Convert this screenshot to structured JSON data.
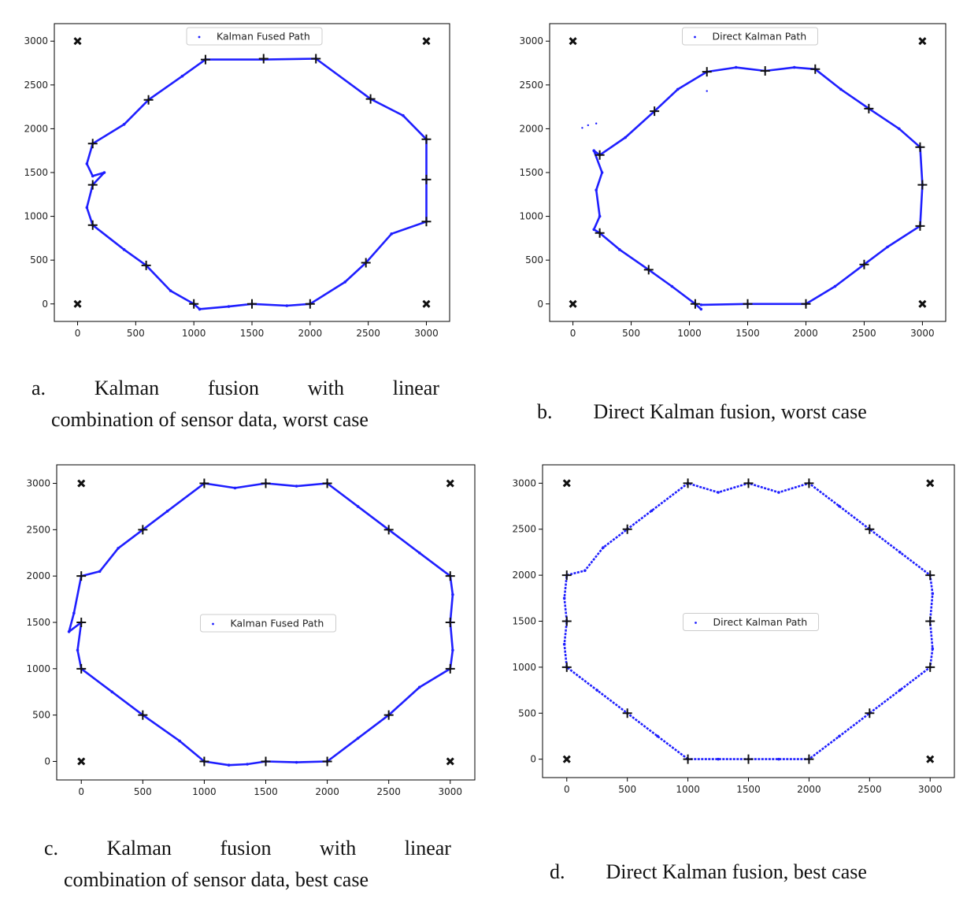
{
  "colors": {
    "path": "#1f1fff",
    "marker": "#111111",
    "axis": "#000000"
  },
  "chart_data": [
    {
      "type": "scatter",
      "panel_id": "a",
      "legend_label": "Kalman Fused Path",
      "legend_position": "top-center",
      "xticks": [
        0,
        500,
        1000,
        1500,
        2000,
        2500,
        3000
      ],
      "yticks": [
        0,
        500,
        1000,
        1500,
        2000,
        2500,
        3000
      ],
      "xlim": [
        -200,
        3200
      ],
      "ylim": [
        -200,
        3200
      ],
      "corner_markers": [
        [
          0,
          0
        ],
        [
          0,
          3000
        ],
        [
          3000,
          0
        ],
        [
          3000,
          3000
        ]
      ],
      "waypoints": [
        [
          1000,
          0
        ],
        [
          1500,
          0
        ],
        [
          2000,
          0
        ],
        [
          2480,
          470
        ],
        [
          3000,
          940
        ],
        [
          3000,
          1420
        ],
        [
          3000,
          1880
        ],
        [
          2520,
          2340
        ],
        [
          2050,
          2800
        ],
        [
          1600,
          2800
        ],
        [
          1100,
          2790
        ],
        [
          610,
          2330
        ],
        [
          130,
          1830
        ],
        [
          130,
          1360
        ],
        [
          130,
          900
        ],
        [
          590,
          440
        ]
      ],
      "path": [
        [
          1050,
          -60
        ],
        [
          1000,
          0
        ],
        [
          800,
          150
        ],
        [
          590,
          440
        ],
        [
          400,
          620
        ],
        [
          130,
          900
        ],
        [
          80,
          1100
        ],
        [
          130,
          1360
        ],
        [
          230,
          1500
        ],
        [
          130,
          1460
        ],
        [
          80,
          1600
        ],
        [
          130,
          1830
        ],
        [
          400,
          2050
        ],
        [
          610,
          2330
        ],
        [
          900,
          2600
        ],
        [
          1100,
          2790
        ],
        [
          1600,
          2790
        ],
        [
          2050,
          2800
        ],
        [
          2520,
          2340
        ],
        [
          2800,
          2150
        ],
        [
          3000,
          1880
        ],
        [
          3000,
          1420
        ],
        [
          3000,
          940
        ],
        [
          2700,
          800
        ],
        [
          2480,
          470
        ],
        [
          2300,
          250
        ],
        [
          2000,
          0
        ],
        [
          1800,
          -20
        ],
        [
          1500,
          0
        ],
        [
          1300,
          -30
        ],
        [
          1050,
          -60
        ]
      ]
    },
    {
      "type": "scatter",
      "panel_id": "b",
      "legend_label": "Direct Kalman Path",
      "legend_position": "top-center",
      "xticks": [
        0,
        500,
        1000,
        1500,
        2000,
        2500,
        3000
      ],
      "yticks": [
        0,
        500,
        1000,
        1500,
        2000,
        2500,
        3000
      ],
      "xlim": [
        -200,
        3200
      ],
      "ylim": [
        -200,
        3200
      ],
      "corner_markers": [
        [
          0,
          0
        ],
        [
          0,
          3000
        ],
        [
          3000,
          0
        ],
        [
          3000,
          3000
        ]
      ],
      "waypoints": [
        [
          1050,
          0
        ],
        [
          1500,
          0
        ],
        [
          2000,
          0
        ],
        [
          2500,
          450
        ],
        [
          2980,
          890
        ],
        [
          3000,
          1360
        ],
        [
          2980,
          1790
        ],
        [
          2540,
          2230
        ],
        [
          2080,
          2680
        ],
        [
          1650,
          2660
        ],
        [
          1150,
          2650
        ],
        [
          700,
          2200
        ],
        [
          230,
          1700
        ],
        [
          230,
          810
        ],
        [
          650,
          390
        ]
      ],
      "path": [
        [
          1100,
          -60
        ],
        [
          1050,
          0
        ],
        [
          850,
          200
        ],
        [
          650,
          390
        ],
        [
          400,
          620
        ],
        [
          230,
          810
        ],
        [
          180,
          850
        ],
        [
          230,
          1000
        ],
        [
          200,
          1300
        ],
        [
          250,
          1500
        ],
        [
          180,
          1750
        ],
        [
          230,
          1700
        ],
        [
          450,
          1900
        ],
        [
          700,
          2200
        ],
        [
          900,
          2450
        ],
        [
          1150,
          2650
        ],
        [
          1400,
          2700
        ],
        [
          1650,
          2660
        ],
        [
          1900,
          2700
        ],
        [
          2080,
          2680
        ],
        [
          2300,
          2450
        ],
        [
          2540,
          2230
        ],
        [
          2800,
          2000
        ],
        [
          2980,
          1790
        ],
        [
          3000,
          1360
        ],
        [
          2980,
          890
        ],
        [
          2700,
          650
        ],
        [
          2500,
          450
        ],
        [
          2250,
          200
        ],
        [
          2000,
          0
        ],
        [
          1500,
          0
        ],
        [
          1100,
          -10
        ]
      ],
      "stray_points": [
        [
          80,
          2010
        ],
        [
          130,
          2040
        ],
        [
          200,
          2060
        ],
        [
          1150,
          2430
        ]
      ]
    },
    {
      "type": "scatter",
      "panel_id": "c",
      "legend_label": "Kalman Fused Path",
      "legend_position": "center",
      "xticks": [
        0,
        500,
        1000,
        1500,
        2000,
        2500,
        3000
      ],
      "yticks": [
        0,
        500,
        1000,
        1500,
        2000,
        2500,
        3000
      ],
      "xlim": [
        -200,
        3200
      ],
      "ylim": [
        -200,
        3200
      ],
      "corner_markers": [
        [
          0,
          0
        ],
        [
          0,
          3000
        ],
        [
          3000,
          0
        ],
        [
          3000,
          3000
        ]
      ],
      "waypoints": [
        [
          1000,
          0
        ],
        [
          1500,
          0
        ],
        [
          2000,
          0
        ],
        [
          2500,
          500
        ],
        [
          3000,
          1000
        ],
        [
          3000,
          1500
        ],
        [
          3000,
          2000
        ],
        [
          2500,
          2500
        ],
        [
          2000,
          3000
        ],
        [
          1500,
          3000
        ],
        [
          1000,
          3000
        ],
        [
          500,
          2500
        ],
        [
          0,
          2000
        ],
        [
          0,
          1500
        ],
        [
          0,
          1000
        ],
        [
          500,
          500
        ]
      ],
      "path": [
        [
          1200,
          -40
        ],
        [
          1000,
          0
        ],
        [
          800,
          220
        ],
        [
          500,
          500
        ],
        [
          250,
          750
        ],
        [
          0,
          1000
        ],
        [
          -30,
          1200
        ],
        [
          0,
          1500
        ],
        [
          -100,
          1400
        ],
        [
          -60,
          1600
        ],
        [
          0,
          2000
        ],
        [
          150,
          2050
        ],
        [
          300,
          2300
        ],
        [
          500,
          2500
        ],
        [
          700,
          2700
        ],
        [
          1000,
          3000
        ],
        [
          1250,
          2950
        ],
        [
          1500,
          3000
        ],
        [
          1750,
          2970
        ],
        [
          2000,
          3000
        ],
        [
          2250,
          2750
        ],
        [
          2500,
          2500
        ],
        [
          2750,
          2250
        ],
        [
          3000,
          2000
        ],
        [
          3020,
          1800
        ],
        [
          3000,
          1500
        ],
        [
          3020,
          1200
        ],
        [
          3000,
          1000
        ],
        [
          2750,
          800
        ],
        [
          2500,
          500
        ],
        [
          2250,
          250
        ],
        [
          2000,
          0
        ],
        [
          1750,
          -10
        ],
        [
          1500,
          0
        ],
        [
          1350,
          -30
        ],
        [
          1200,
          -40
        ]
      ]
    },
    {
      "type": "scatter",
      "panel_id": "d",
      "legend_label": "Direct Kalman Path",
      "legend_position": "center",
      "xticks": [
        0,
        500,
        1000,
        1500,
        2000,
        2500,
        3000
      ],
      "yticks": [
        0,
        500,
        1000,
        1500,
        2000,
        2500,
        3000
      ],
      "xlim": [
        -200,
        3200
      ],
      "ylim": [
        -200,
        3200
      ],
      "corner_markers": [
        [
          0,
          0
        ],
        [
          0,
          3000
        ],
        [
          3000,
          0
        ],
        [
          3000,
          3000
        ]
      ],
      "waypoints": [
        [
          1000,
          0
        ],
        [
          1500,
          0
        ],
        [
          2000,
          0
        ],
        [
          2500,
          500
        ],
        [
          3000,
          1000
        ],
        [
          3000,
          1500
        ],
        [
          3000,
          2000
        ],
        [
          2500,
          2500
        ],
        [
          2000,
          3000
        ],
        [
          1500,
          3000
        ],
        [
          1000,
          3000
        ],
        [
          500,
          2500
        ],
        [
          0,
          2000
        ],
        [
          0,
          1500
        ],
        [
          0,
          1000
        ],
        [
          500,
          500
        ]
      ],
      "path": [
        [
          1000,
          0
        ],
        [
          750,
          250
        ],
        [
          500,
          500
        ],
        [
          250,
          750
        ],
        [
          0,
          1000
        ],
        [
          -20,
          1250
        ],
        [
          0,
          1500
        ],
        [
          -20,
          1750
        ],
        [
          0,
          2000
        ],
        [
          150,
          2050
        ],
        [
          300,
          2300
        ],
        [
          500,
          2500
        ],
        [
          700,
          2700
        ],
        [
          1000,
          3000
        ],
        [
          1250,
          2900
        ],
        [
          1500,
          3000
        ],
        [
          1750,
          2900
        ],
        [
          2000,
          3000
        ],
        [
          2250,
          2750
        ],
        [
          2500,
          2500
        ],
        [
          2750,
          2250
        ],
        [
          3000,
          2000
        ],
        [
          3020,
          1800
        ],
        [
          3000,
          1500
        ],
        [
          3020,
          1200
        ],
        [
          3000,
          1000
        ],
        [
          2750,
          750
        ],
        [
          2500,
          500
        ],
        [
          2250,
          250
        ],
        [
          2000,
          0
        ],
        [
          1750,
          0
        ],
        [
          1500,
          0
        ],
        [
          1250,
          0
        ],
        [
          1000,
          0
        ]
      ]
    }
  ],
  "captions": [
    {
      "id": "a",
      "words": [
        "a.",
        "Kalman",
        "fusion",
        "with",
        "linear"
      ],
      "line2": "combination of sensor data, worst case"
    },
    {
      "id": "b",
      "text": "b.        Direct Kalman fusion, worst case"
    },
    {
      "id": "c",
      "words": [
        "c.",
        "Kalman",
        "fusion",
        "with",
        "linear"
      ],
      "line2": "combination of sensor data, best case"
    },
    {
      "id": "d",
      "text": "d.        Direct Kalman fusion, best case"
    }
  ]
}
